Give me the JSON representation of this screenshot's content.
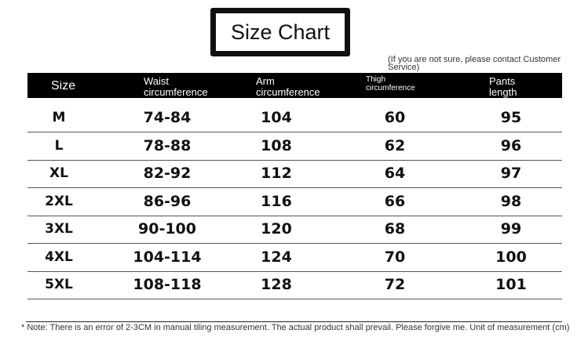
{
  "title": "Size Chart",
  "contact_note": "(If you are not sure, please contact Customer Service)",
  "headers": [
    "Size",
    "Waist circumference",
    "Arm circumference",
    "Thigh circumference",
    "Pants length"
  ],
  "rows": [
    [
      "M",
      "74-84",
      "104",
      "60",
      "95"
    ],
    [
      "L",
      "78-88",
      "108",
      "62",
      "96"
    ],
    [
      "XL",
      "82-92",
      "112",
      "64",
      "97"
    ],
    [
      "2XL",
      "86-96",
      "116",
      "66",
      "98"
    ],
    [
      "3XL",
      "90-100",
      "120",
      "68",
      "99"
    ],
    [
      "4XL",
      "104-114",
      "124",
      "70",
      "100"
    ],
    [
      "5XL",
      "108-118",
      "128",
      "72",
      "101"
    ]
  ],
  "footnote": "* Note: There is an error of 2-3CM in manual tiling measurement. The actual product shall prevail. Please forgive me. Unit of measurement (cm)"
}
